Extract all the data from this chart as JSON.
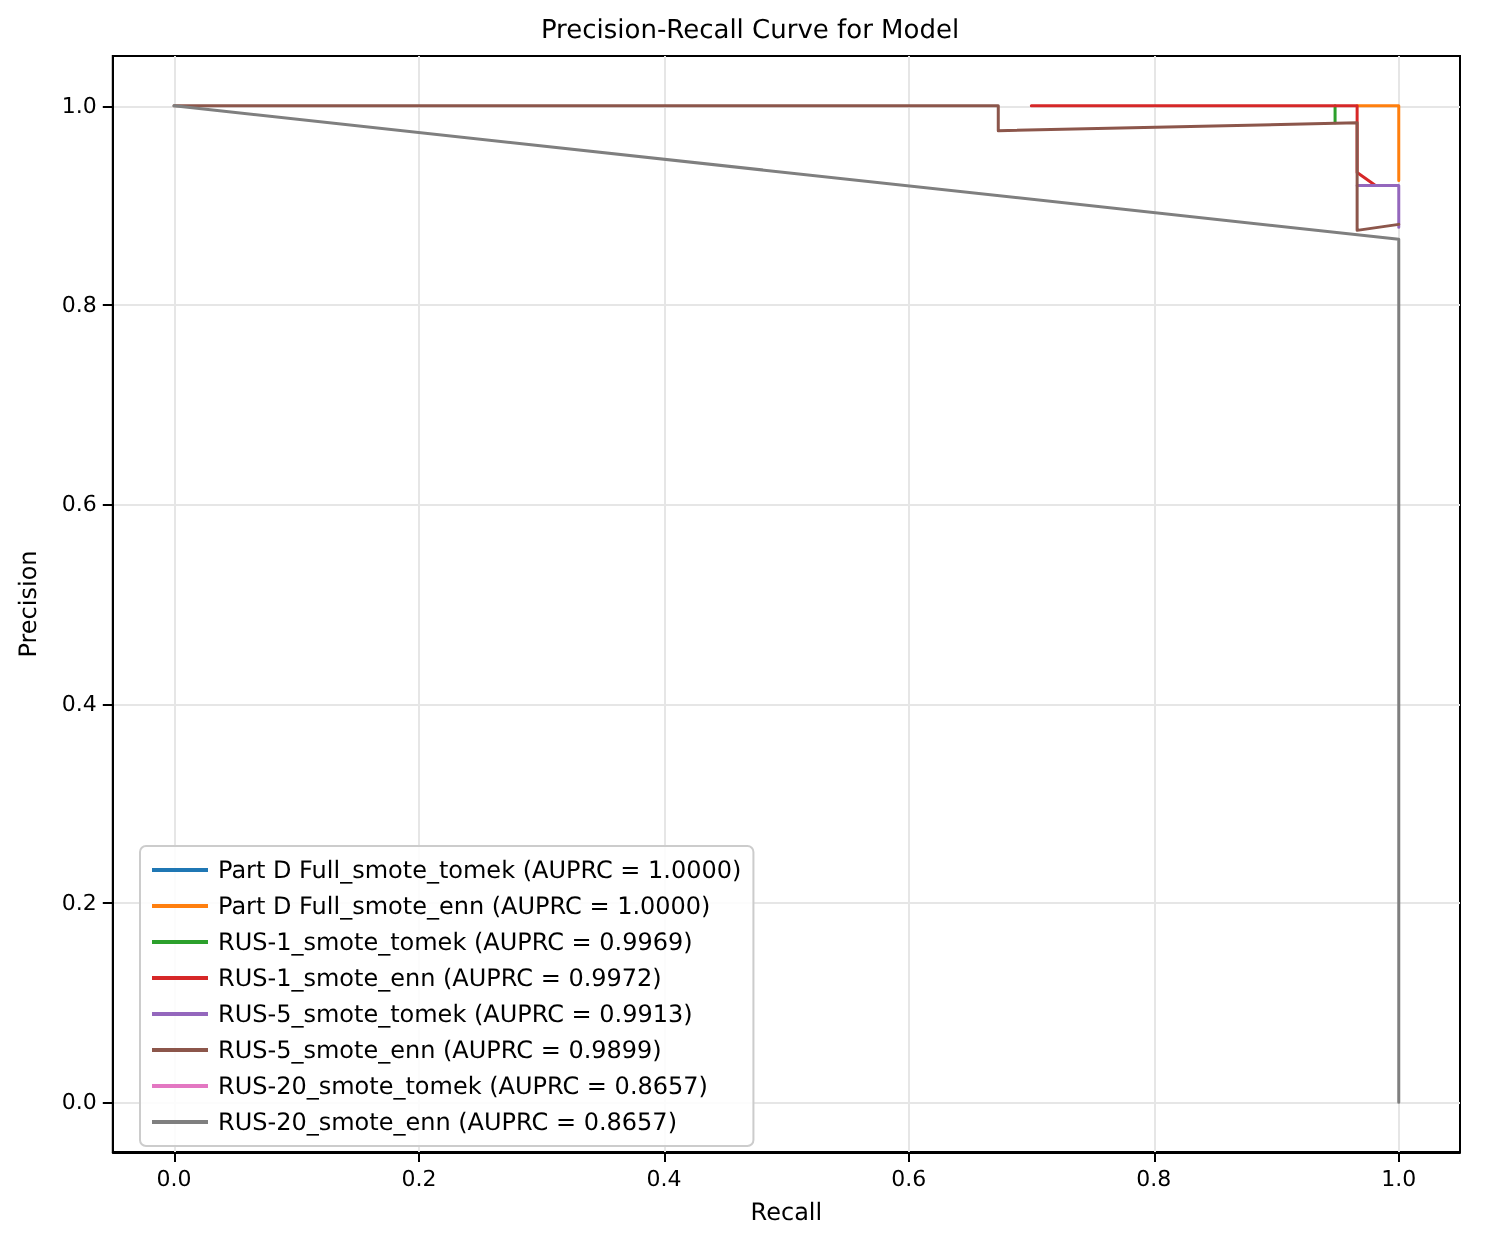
{
  "chart_data": {
    "type": "line",
    "title": "Precision-Recall Curve for Model",
    "xlabel": "Recall",
    "ylabel": "Precision",
    "xlim": [
      -0.05,
      1.05
    ],
    "ylim": [
      -0.05,
      1.05
    ],
    "xticks": [
      {
        "value": 0,
        "label": "0.0"
      },
      {
        "value": 0.2,
        "label": "0.2"
      },
      {
        "value": 0.4,
        "label": "0.4"
      },
      {
        "value": 0.6,
        "label": "0.6"
      },
      {
        "value": 0.8,
        "label": "0.8"
      },
      {
        "value": 1,
        "label": "1.0"
      }
    ],
    "yticks": [
      {
        "value": 0,
        "label": "0.0"
      },
      {
        "value": 0.2,
        "label": "0.2"
      },
      {
        "value": 0.4,
        "label": "0.4"
      },
      {
        "value": 0.6,
        "label": "0.6"
      },
      {
        "value": 0.8,
        "label": "0.8"
      },
      {
        "value": 1,
        "label": "1.0"
      }
    ],
    "grid": true,
    "legend": "bottom left",
    "marker": "none",
    "line_style": "solid",
    "series": [
      {
        "name": "Part D Full_smote_tomek (AUPRC = 1.0000)",
        "color": "#1f77b4"
      },
      {
        "name": "Part D Full_smote_enn (AUPRC = 1.0000)",
        "color": "#ff7f0e",
        "x": [
          0.966,
          1,
          1
        ],
        "values": [
          1,
          1,
          0.925
        ]
      },
      {
        "name": "RUS-1_smote_tomek (AUPRC = 0.9969)",
        "color": "#2ca02c",
        "x": [
          0.948,
          0.948
        ],
        "values": [
          1,
          0.983
        ]
      },
      {
        "name": "RUS-1_smote_enn (AUPRC = 0.9972)",
        "color": "#d62728",
        "x": [
          0.7,
          0.966,
          0.966,
          0.981
        ],
        "values": [
          1,
          1,
          0.933,
          0.92
        ]
      },
      {
        "name": "RUS-5_smote_tomek (AUPRC = 0.9913)",
        "color": "#9467bd",
        "x": [
          0.966,
          1,
          1
        ],
        "values": [
          0.92,
          0.92,
          0.878
        ]
      },
      {
        "name": "RUS-5_smote_enn (AUPRC = 0.9899)",
        "color": "#8c564b",
        "x": [
          0,
          0.673,
          0.673,
          0.966,
          0.966,
          1
        ],
        "values": [
          1,
          1,
          0.975,
          0.983,
          0.875,
          0.881
        ]
      },
      {
        "name": "RUS-20_smote_tomek (AUPRC = 0.8657)",
        "color": "#e377c2"
      },
      {
        "name": "RUS-20_smote_enn (AUPRC = 0.8657)",
        "color": "#7f7f7f",
        "x": [
          0,
          1,
          1
        ],
        "values": [
          1,
          0.866,
          0
        ]
      }
    ]
  }
}
